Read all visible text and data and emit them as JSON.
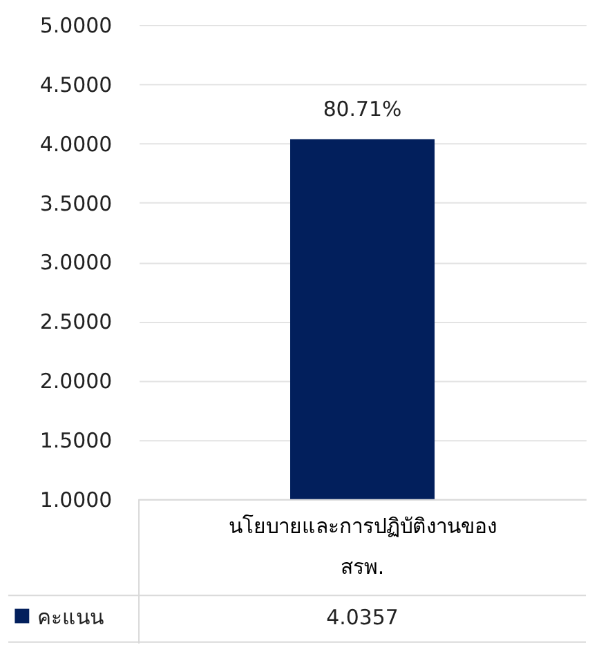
{
  "chart_data": {
    "type": "bar",
    "categories": [
      "นโยบายและการปฏิบัติงานของ สรพ."
    ],
    "series": [
      {
        "name": "คะแนน",
        "color": "#021f5c",
        "values": [
          4.0357
        ]
      }
    ],
    "annotations": [
      {
        "text": "80.71%",
        "x": "นโยบายและการปฏิบัติงานของ สรพ.",
        "y": 4.0357
      },
      "4.0357"
    ],
    "ylim": [
      1,
      5
    ],
    "yticks": [
      {
        "value": 1,
        "label": "1.0000"
      },
      {
        "value": 1.5,
        "label": "1.5000"
      },
      {
        "value": 2,
        "label": "2.0000"
      },
      {
        "value": 2.5,
        "label": "2.5000"
      },
      {
        "value": 3,
        "label": "3.0000"
      },
      {
        "value": 3.5,
        "label": "3.5000"
      },
      {
        "value": 4,
        "label": "4.0000"
      },
      {
        "value": 4.5,
        "label": "4.5000"
      },
      {
        "value": 5,
        "label": "5.0000"
      }
    ],
    "grid": "y",
    "legend": "bottom left"
  }
}
